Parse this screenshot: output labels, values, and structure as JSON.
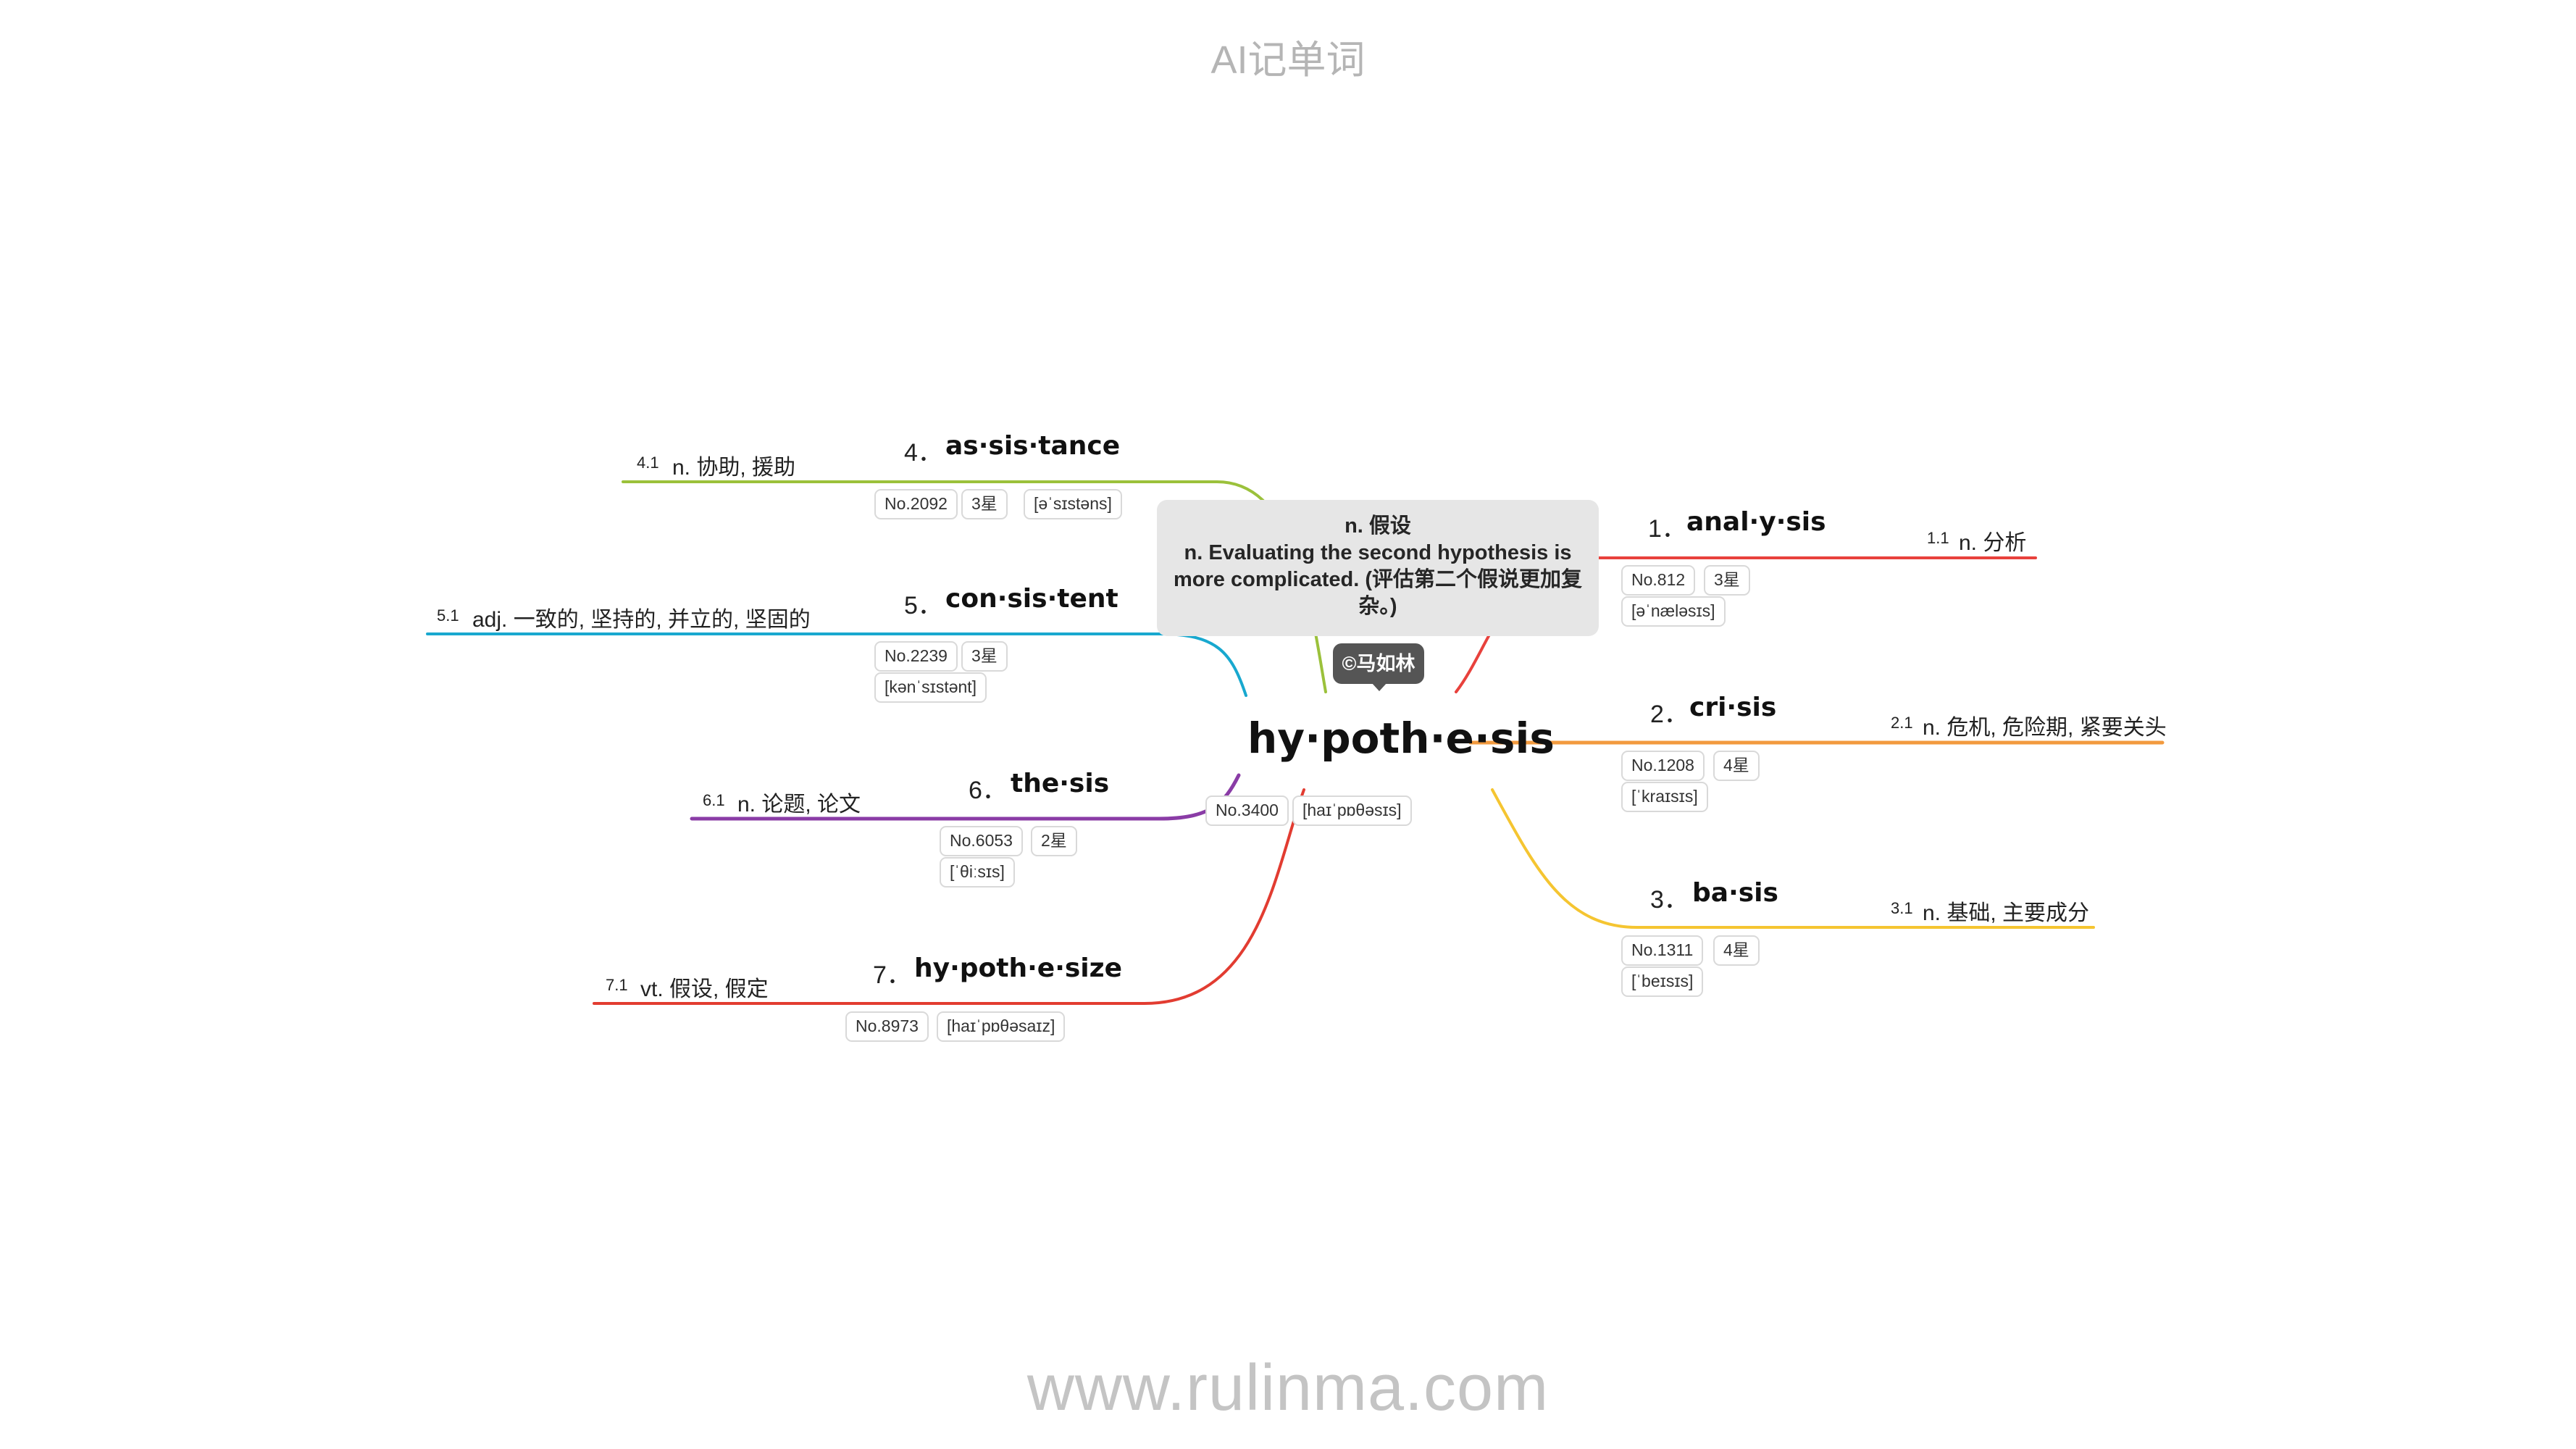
{
  "header": "AI记单词",
  "footer": "www.rulinma.com",
  "center": {
    "word": "hy·poth·e·sis",
    "no": "No.3400",
    "phonetic": "[haɪˈpɒθəsɪs]",
    "callout": {
      "line1": "n. 假设",
      "line2": "n. Evaluating the second hypothesis is more complicated. (评估第二个假说更加复杂。)"
    },
    "badge": "©马如林"
  },
  "branches": [
    {
      "idx": "1．",
      "word": "anal·y·sis",
      "no": "No.812",
      "stars": "3星",
      "phonetic": "[əˈnæləsɪs]",
      "sub_idx": "1.1",
      "meaning": "n. 分析",
      "color": "#e8413c"
    },
    {
      "idx": "2．",
      "word": "cri·sis",
      "no": "No.1208",
      "stars": "4星",
      "phonetic": "[ˈkraɪsɪs]",
      "sub_idx": "2.1",
      "meaning": "n. 危机, 危险期, 紧要关头",
      "color": "#f29a3e"
    },
    {
      "idx": "3．",
      "word": "ba·sis",
      "no": "No.1311",
      "stars": "4星",
      "phonetic": "[ˈbeɪsɪs]",
      "sub_idx": "3.1",
      "meaning": "n. 基础, 主要成分",
      "color": "#f5c531"
    },
    {
      "idx": "4．",
      "word": "as·sis·tance",
      "no": "No.2092",
      "stars": "3星",
      "phonetic": "[əˈsɪstəns]",
      "sub_idx": "4.1",
      "meaning": "n. 协助, 援助",
      "color": "#9bc13b"
    },
    {
      "idx": "5．",
      "word": "con·sis·tent",
      "no": "No.2239",
      "stars": "3星",
      "phonetic": "[kənˈsɪstənt]",
      "sub_idx": "5.1",
      "meaning": "adj. 一致的, 坚持的, 并立的, 坚固的",
      "color": "#18a8cf"
    },
    {
      "idx": "6．",
      "word": "the·sis",
      "no": "No.6053",
      "stars": "2星",
      "phonetic": "[ˈθiːsɪs]",
      "sub_idx": "6.1",
      "meaning": "n. 论题, 论文",
      "color": "#8a3ca6"
    },
    {
      "idx": "7．",
      "word": "hy·poth·e·size",
      "no": "No.8973",
      "stars": "",
      "phonetic": "[haɪˈpɒθəsaɪz]",
      "sub_idx": "7.1",
      "meaning": "vt. 假设, 假定",
      "color": "#e23c31"
    }
  ]
}
